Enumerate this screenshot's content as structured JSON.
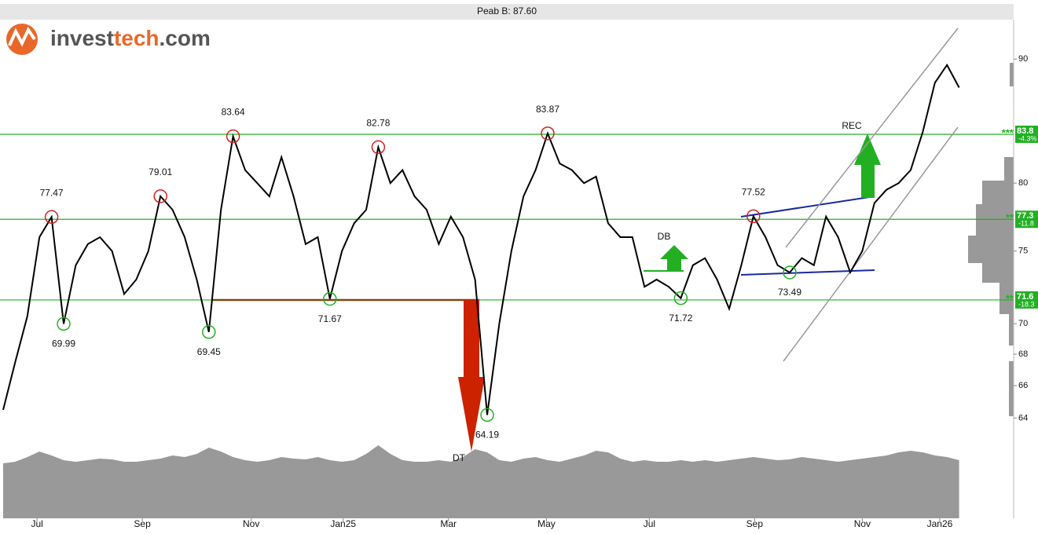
{
  "logo": {
    "part1": "invest",
    "part2": "tech",
    "part3": ".com"
  },
  "chart_data": {
    "type": "line",
    "title": "Peab B: 87.60",
    "log_scale": true,
    "xlim": [
      0,
      84
    ],
    "xticks": [
      {
        "value": 2.8,
        "label": "Jul"
      },
      {
        "value": 11.5,
        "label": "Sep"
      },
      {
        "value": 20.5,
        "label": "Nov"
      },
      {
        "value": 28.1,
        "label": "Jan25"
      },
      {
        "value": 36.8,
        "label": "Mar"
      },
      {
        "value": 44.9,
        "label": "May"
      },
      {
        "value": 53.4,
        "label": "Jul"
      },
      {
        "value": 62.1,
        "label": "Sep"
      },
      {
        "value": 71.0,
        "label": "Nov"
      },
      {
        "value": 77.4,
        "label": "Jan26"
      }
    ],
    "ylim": [
      63.4,
      93.3
    ],
    "yticks": [
      64,
      66,
      68,
      70,
      75,
      80,
      90
    ],
    "series": [
      {
        "name": "Peab B",
        "color": "#000000",
        "values": [
          64.5,
          67.5,
          70.5,
          76,
          77.47,
          69.99,
          74,
          75.5,
          76,
          75,
          72,
          73,
          75,
          79.01,
          78,
          76,
          73,
          69.45,
          78,
          83.64,
          81,
          80,
          79,
          82,
          79,
          75.5,
          76,
          71.67,
          75,
          77,
          78,
          82.78,
          80,
          81,
          79,
          78,
          75.5,
          77.5,
          76,
          73,
          64.19,
          70,
          75,
          79,
          81,
          83.87,
          81.5,
          81,
          80,
          80.5,
          77,
          76,
          76,
          72.5,
          73,
          72.5,
          71.72,
          74,
          74.5,
          73,
          71,
          74,
          77.52,
          76,
          74,
          73.49,
          74.5,
          74,
          77.5,
          76,
          73.5,
          75,
          78.5,
          79.5,
          80,
          81,
          84,
          88,
          89.5,
          87.6
        ]
      }
    ],
    "peaks": {
      "color": "#d42020",
      "x": [
        4,
        13,
        19,
        31,
        45,
        62
      ],
      "values": [
        77.47,
        79.01,
        83.64,
        82.78,
        83.87,
        77.52
      ]
    },
    "troughs": {
      "color": "#22b022",
      "x": [
        5,
        17,
        27,
        40,
        56,
        65
      ],
      "values": [
        69.99,
        69.45,
        71.67,
        64.19,
        71.72,
        73.49
      ]
    },
    "levels": {
      "color": "#22b022",
      "values": [
        83.8,
        77.3,
        71.6
      ],
      "strength": [
        "***",
        "**",
        "**"
      ],
      "changes": [
        "-4.3%",
        "-11.8",
        "-18.3"
      ]
    },
    "volume": {
      "color": "#999999",
      "ylim": [
        0,
        100
      ],
      "values": [
        70,
        72,
        78,
        85,
        80,
        74,
        72,
        74,
        76,
        75,
        72,
        72,
        74,
        76,
        80,
        78,
        82,
        90,
        85,
        78,
        74,
        72,
        74,
        78,
        76,
        75,
        78,
        74,
        72,
        74,
        82,
        93,
        82,
        74,
        72,
        72,
        74,
        72,
        78,
        88,
        84,
        74,
        72,
        76,
        78,
        74,
        72,
        76,
        80,
        86,
        84,
        76,
        72,
        74,
        72,
        72,
        74,
        72,
        74,
        72,
        74,
        76,
        78,
        76,
        74,
        75,
        78,
        76,
        74,
        72,
        74,
        76,
        78,
        80,
        84,
        86,
        84,
        80,
        78,
        74
      ]
    },
    "annotations": [
      "DT",
      "DB",
      "REC"
    ]
  }
}
